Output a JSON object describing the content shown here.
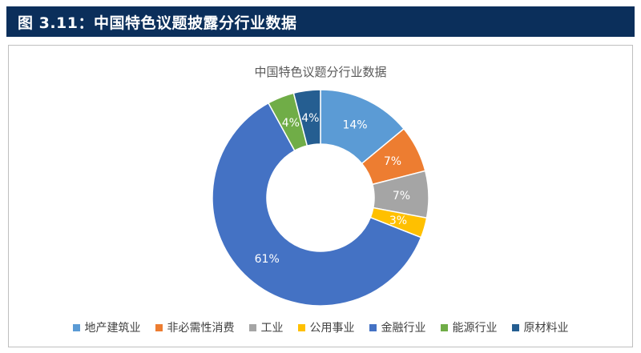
{
  "header": {
    "figure_label": "图 3.11：",
    "title": "中国特色议题披露分行业数据"
  },
  "chart_data": {
    "type": "pie",
    "donut": true,
    "title": "中国特色议题分行业数据",
    "legend_position": "bottom",
    "slices": [
      {
        "name": "地产建筑业",
        "value": 14,
        "label": "14%",
        "color": "#5b9bd5"
      },
      {
        "name": "非必需性消费",
        "value": 7,
        "label": "7%",
        "color": "#ed7d31"
      },
      {
        "name": "工业",
        "value": 7,
        "label": "7%",
        "color": "#a5a5a5"
      },
      {
        "name": "公用事业",
        "value": 3,
        "label": "3%",
        "color": "#ffc000"
      },
      {
        "name": "金融行业",
        "value": 61,
        "label": "61%",
        "color": "#4472c4"
      },
      {
        "name": "能源行业",
        "value": 4,
        "label": "4%",
        "color": "#70ad47"
      },
      {
        "name": "原材料业",
        "value": 4,
        "label": "4%",
        "color": "#255e91"
      }
    ]
  }
}
